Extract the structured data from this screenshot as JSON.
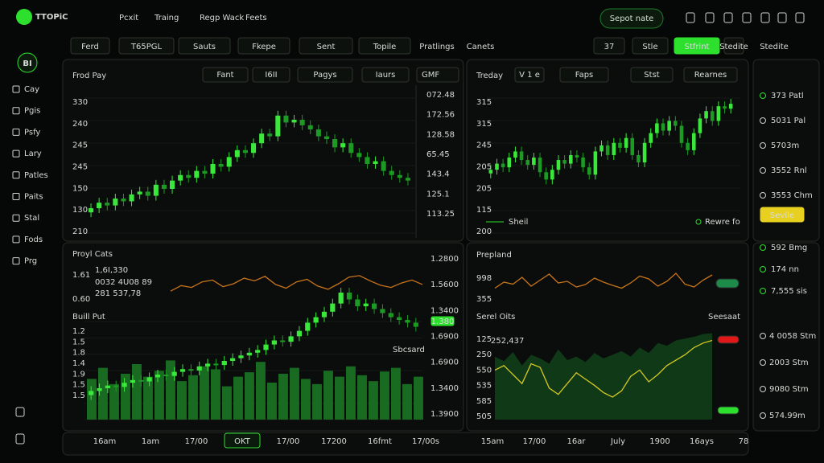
{
  "header": {
    "logo": "TTOPiC",
    "nav": [
      "Pcxit",
      "Traing",
      "Regp Wack",
      "Feets"
    ],
    "button": "Sepot nate"
  },
  "toolbar": [
    "Ferd",
    "T65PGL",
    "Sauts",
    "Fkepe",
    "Sent",
    "Topile",
    "Pratlings",
    "Canets",
    "37",
    "Stle",
    "Stfrint",
    "Stedite"
  ],
  "sidebar": {
    "badge": "BI",
    "items": [
      "Cay",
      "Pgis",
      "Psfy",
      "Lary",
      "Patles",
      "Paits",
      "Stal",
      "Fods",
      "Prg"
    ]
  },
  "panels": [
    {
      "title": "Frod Pay",
      "buttons": [
        "Fant",
        "I6II",
        "Pagys",
        "Iaurs"
      ],
      "selector": "GMF",
      "y_labels": [
        "330",
        "240",
        "245",
        "245",
        "150",
        "130",
        "210"
      ],
      "side_labels": [
        "072.48",
        "172.56",
        "128.58",
        "65.45",
        "143.4",
        "125.1",
        "113.25"
      ],
      "ylim": [
        0,
        100
      ],
      "candles": [
        18,
        22,
        20,
        25,
        23,
        28,
        30,
        27,
        35,
        32,
        38,
        42,
        40,
        45,
        43,
        50,
        48,
        55,
        60,
        58,
        65,
        72,
        70,
        85,
        80,
        82,
        78,
        75,
        70,
        68,
        62,
        65,
        58,
        55,
        50,
        52,
        45,
        42,
        40,
        38
      ]
    },
    {
      "title": "Treday",
      "buttons": [
        "V 1 e",
        "Faps",
        "Stst",
        "Rearnes"
      ],
      "y_labels": [
        "315",
        "315",
        "245",
        "205",
        "205",
        "115",
        "200"
      ],
      "legend": [
        "Sheil",
        "Rewre fo"
      ],
      "ylim": [
        0,
        100
      ],
      "candles": [
        40,
        45,
        42,
        50,
        55,
        48,
        44,
        50,
        38,
        32,
        40,
        48,
        45,
        52,
        50,
        42,
        36,
        55,
        60,
        52,
        62,
        58,
        66,
        52,
        46,
        62,
        70,
        78,
        72,
        80,
        76,
        62,
        56,
        70,
        82,
        88,
        80,
        92,
        90,
        94
      ]
    },
    {
      "title": "Proyl Cats",
      "big_value": "1,6I,330",
      "sub": [
        "0032 4U08 89",
        "281 537,78"
      ],
      "y_labels": [
        "1.61",
        "0.60"
      ],
      "ylim": [
        0,
        100
      ],
      "line_color": "#c8741a",
      "line": [
        30,
        45,
        40,
        55,
        60,
        42,
        50,
        65,
        58,
        70,
        48,
        38,
        55,
        62,
        44,
        35,
        50,
        68,
        72,
        58,
        46,
        40,
        52,
        60,
        48
      ]
    },
    {
      "title": "Buill Put",
      "y_labels": [
        "1.2",
        "1.5",
        "1.8",
        "1.4",
        "1.9",
        "1.5",
        "1.5"
      ],
      "side_labels": [
        "1.2800",
        "1.5600",
        "1.3400",
        "1.6900",
        "1.6900",
        "1.3400",
        "1.3900"
      ],
      "tag": "1.380",
      "note": "Sbcsard",
      "ylim": [
        0,
        100
      ],
      "candles": [
        8,
        10,
        12,
        11,
        14,
        16,
        15,
        18,
        20,
        19,
        22,
        24,
        23,
        26,
        28,
        27,
        30,
        32,
        34,
        36,
        38,
        42,
        45,
        44,
        48,
        52,
        58,
        62,
        66,
        72,
        80,
        75,
        70,
        72,
        68,
        65,
        62,
        60,
        58,
        55
      ],
      "volume": [
        55,
        70,
        48,
        62,
        75,
        58,
        66,
        80,
        52,
        60,
        72,
        68,
        45,
        58,
        64,
        78,
        50,
        62,
        70,
        55,
        48,
        66,
        58,
        72,
        60,
        52,
        65,
        70,
        48,
        58
      ]
    },
    {
      "title": "Prepland",
      "y_labels": [
        "998",
        "355"
      ],
      "ylim": [
        0,
        100
      ],
      "line_color": "#c8741a",
      "line": [
        35,
        50,
        45,
        62,
        40,
        55,
        70,
        48,
        52,
        38,
        44,
        60,
        50,
        42,
        35,
        48,
        65,
        58,
        40,
        52,
        72,
        45,
        38,
        55,
        68
      ]
    },
    {
      "title": "Serel Oits",
      "big_value": "252,437",
      "dropdown": "Seesaat",
      "y_labels": [
        "125",
        "250",
        "550",
        "535",
        "585",
        "505"
      ],
      "ylim": [
        0,
        100
      ],
      "area": [
        70,
        65,
        75,
        60,
        72,
        68,
        62,
        78,
        66,
        70,
        64,
        74,
        68,
        72,
        76,
        70,
        80,
        74,
        85,
        82,
        88,
        90,
        92,
        95,
        96
      ],
      "line": [
        55,
        60,
        50,
        40,
        62,
        58,
        35,
        28,
        40,
        52,
        45,
        38,
        30,
        25,
        32,
        48,
        55,
        42,
        50,
        60,
        66,
        72,
        80,
        85,
        88
      ]
    }
  ],
  "rightlist": {
    "top": [
      "373 Patl",
      "5031 Pal",
      "5703m",
      "3552 Rnl",
      "3553 Chm"
    ],
    "button": "Sevile",
    "mid": [
      "592 Bmg",
      "174 nn",
      "7,555 sis"
    ],
    "bottom": [
      "4 0058 Stm",
      "2003 Stm",
      "9080 Stm",
      "574.99m"
    ]
  },
  "bottom_axis": {
    "left": [
      "16am",
      "1am",
      "17/00",
      "OKT",
      "17/00",
      "17200",
      "16fmt",
      "17/00s"
    ],
    "right": [
      "15am",
      "17/00",
      "16ar",
      "July",
      "1900",
      "16ays",
      "78"
    ]
  }
}
